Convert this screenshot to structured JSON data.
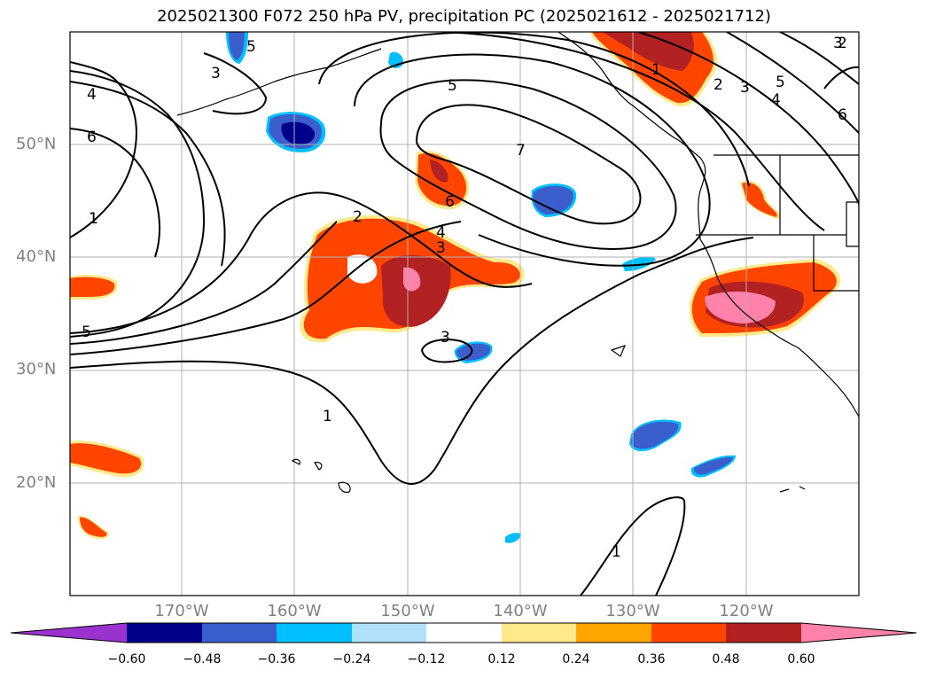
{
  "title": "2025021300 F072 250 hPa PV, precipitation PC (2025021612 - 2025021712)",
  "map": {
    "lat_labels": [
      "50°N",
      "40°N",
      "30°N",
      "20°N"
    ],
    "lon_labels": [
      "170°W",
      "160°W",
      "150°W",
      "140°W",
      "130°W",
      "120°W"
    ],
    "contour_labels": [
      "1",
      "2",
      "3",
      "4",
      "5",
      "6",
      "7",
      "6",
      "5",
      "4",
      "3",
      "2",
      "1",
      "3",
      "5",
      "6",
      "5",
      "4",
      "3",
      "2",
      "1",
      "1",
      "1",
      "3"
    ]
  },
  "colorbar": {
    "ticks": [
      "−0.60",
      "−0.48",
      "−0.36",
      "−0.24",
      "−0.12",
      "0.12",
      "0.24",
      "0.36",
      "0.48",
      "0.60"
    ],
    "colors": {
      "purple": "#9a32cd",
      "navy": "#00008b",
      "royal": "#3a5fcd",
      "deepsky": "#00bfff",
      "lightsky": "#b0e0fa",
      "white": "#ffffff",
      "lightyellow": "#ffe98a",
      "orange": "#ffa500",
      "orangered": "#ff4500",
      "firebrick": "#b22222",
      "pink": "#ff82ab"
    }
  }
}
